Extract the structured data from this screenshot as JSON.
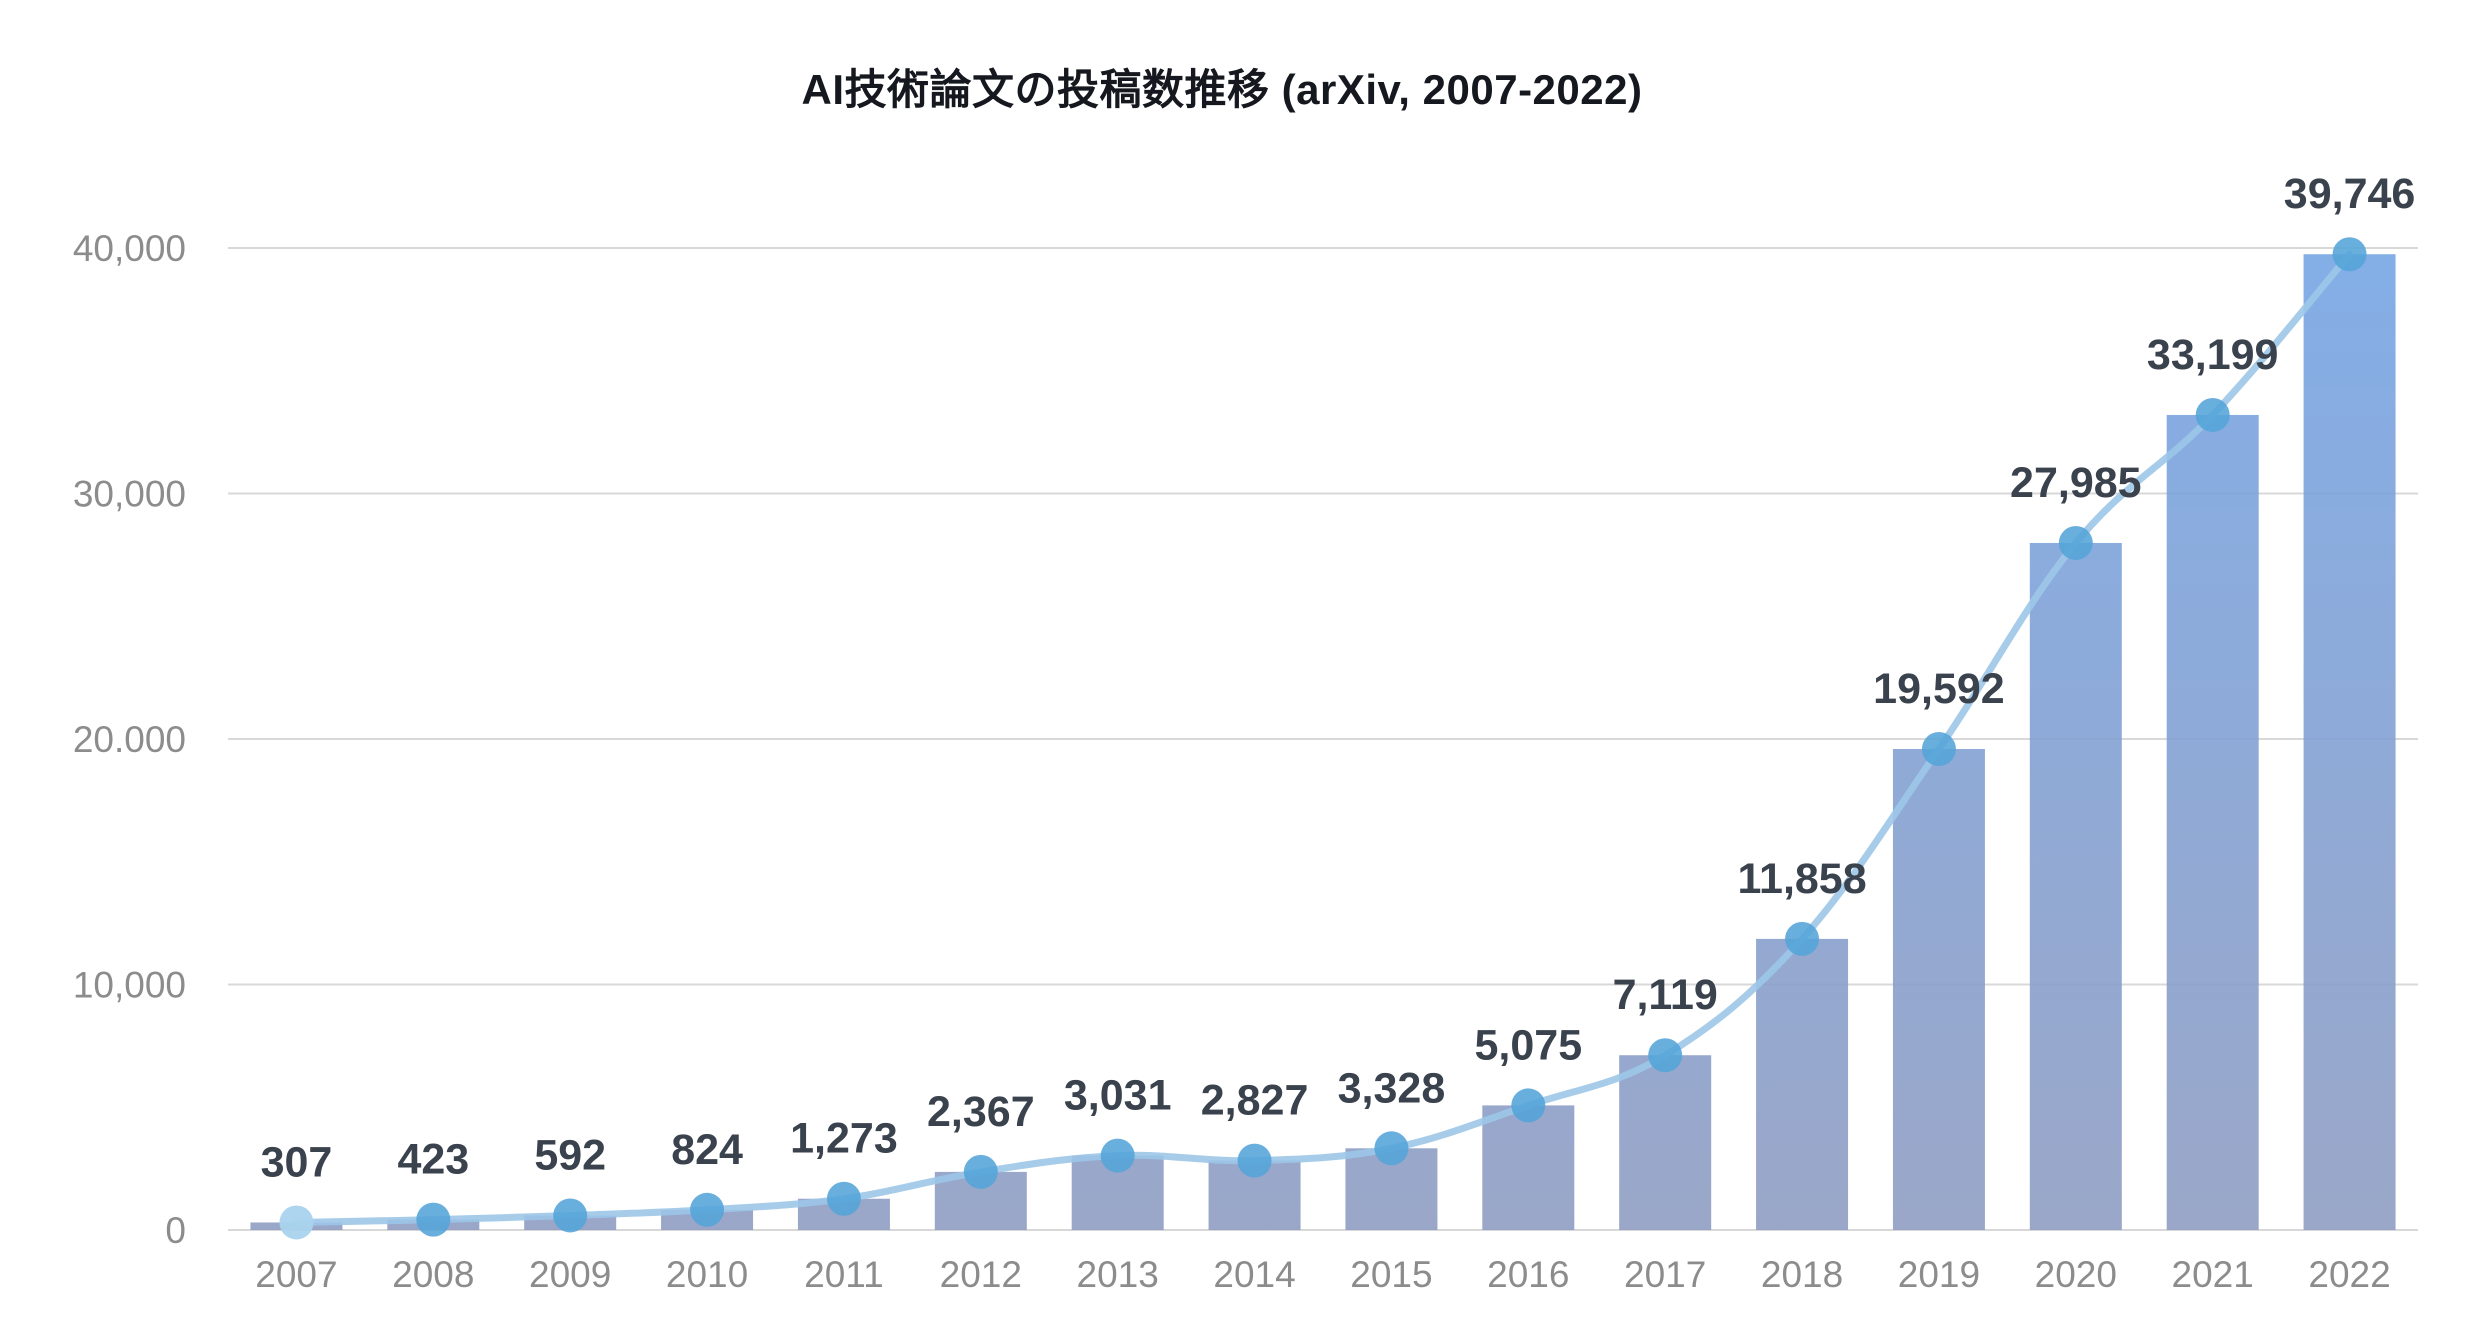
{
  "chart_data": {
    "type": "bar",
    "subtype": "bar-with-smooth-line-overlay",
    "title": "AI技術論文の投稿数推移 (arXiv, 2007-2022)",
    "categories": [
      "2007",
      "2008",
      "2009",
      "2010",
      "2011",
      "2012",
      "2013",
      "2014",
      "2015",
      "2016",
      "2017",
      "2018",
      "2019",
      "2020",
      "2021",
      "2022"
    ],
    "values": [
      307,
      423,
      592,
      824,
      1273,
      2367,
      3031,
      2827,
      3328,
      5075,
      7119,
      11858,
      19592,
      27985,
      33199,
      39746
    ],
    "data_labels": [
      "307",
      "423",
      "592",
      "824",
      "1,273",
      "2,367",
      "3,031",
      "2,827",
      "3,328",
      "5,075",
      "7,119",
      "11,858",
      "19,592",
      "27,985",
      "33,199",
      "39,746"
    ],
    "xlabel": "",
    "ylabel": "",
    "ylim": [
      0,
      40000
    ],
    "y_ticks": [
      0,
      10000,
      20000,
      30000,
      40000
    ],
    "y_tick_labels": [
      "0",
      "10,000",
      "20.000",
      "30,000",
      "40,000"
    ],
    "grid": "horizontal",
    "legend": "none",
    "colors": {
      "bar_gradient_top": "#76a5e4",
      "bar_gradient_bottom": "#8f9dc2",
      "line": "#9cc7e8",
      "marker": "#54a4d8",
      "marker_first": "#a9d3ee",
      "gridline": "#d8d8d8",
      "axis_tick_text": "#8c8c8c",
      "data_label_text": "#3a424d",
      "title_text": "#15181e"
    }
  }
}
